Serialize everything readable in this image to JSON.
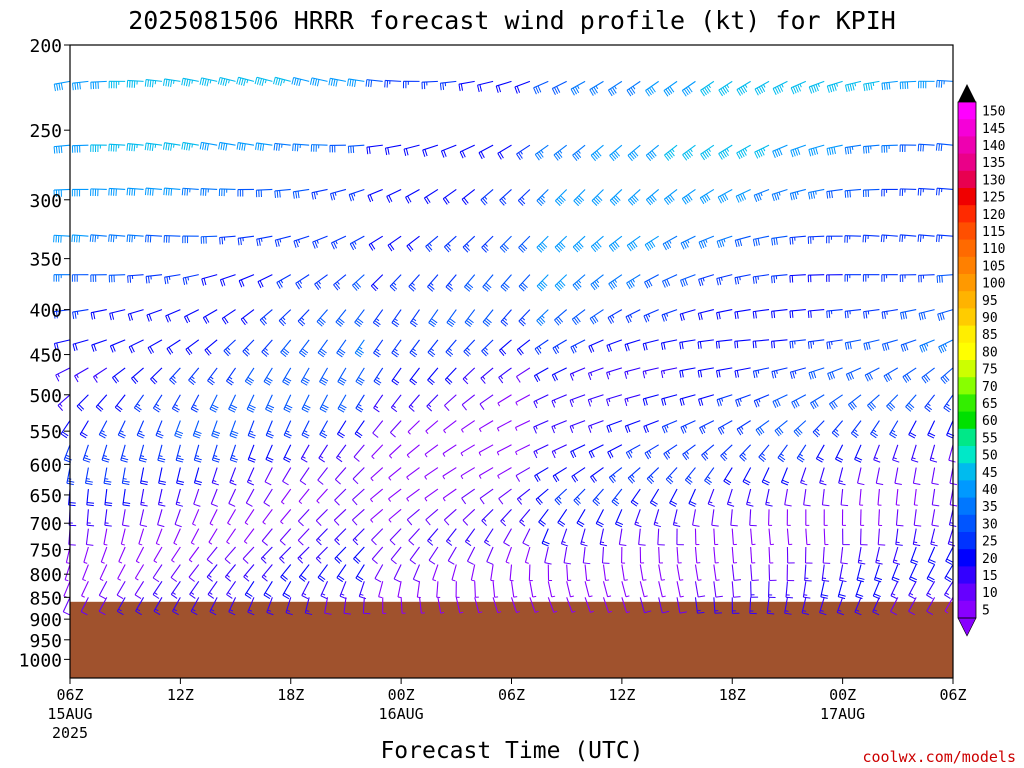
{
  "title": "2025081506 HRRR forecast wind profile (kt) for KPIH",
  "credit": "coolwx.com/models",
  "colors": {
    "ground": "#a0522d",
    "credit": "#cc0000",
    "frame": "#000000"
  },
  "chart_data": {
    "type": "heatmap",
    "title": "2025081506 HRRR forecast wind profile (kt) for KPIH",
    "xlabel": "Forecast Time (UTC)",
    "ylabel": "",
    "x_ticks": [
      {
        "hour": 0,
        "label": "06Z",
        "sub": "15AUG",
        "sub2": "2025"
      },
      {
        "hour": 6,
        "label": "12Z",
        "sub": "",
        "sub2": ""
      },
      {
        "hour": 12,
        "label": "18Z",
        "sub": "",
        "sub2": ""
      },
      {
        "hour": 18,
        "label": "00Z",
        "sub": "16AUG",
        "sub2": ""
      },
      {
        "hour": 24,
        "label": "06Z",
        "sub": "",
        "sub2": ""
      },
      {
        "hour": 30,
        "label": "12Z",
        "sub": "",
        "sub2": ""
      },
      {
        "hour": 36,
        "label": "18Z",
        "sub": "",
        "sub2": ""
      },
      {
        "hour": 42,
        "label": "00Z",
        "sub": "17AUG",
        "sub2": ""
      },
      {
        "hour": 48,
        "label": "06Z",
        "sub": "",
        "sub2": ""
      }
    ],
    "xlim": [
      0,
      48
    ],
    "y_ticks": [
      200,
      250,
      300,
      350,
      400,
      450,
      500,
      550,
      600,
      650,
      700,
      750,
      800,
      850,
      900,
      950,
      1000
    ],
    "ylim": [
      1050,
      200
    ],
    "y_scale": "log",
    "y_units": "hPa",
    "ground_top_hpa": 860,
    "colorbar": {
      "label_values": [
        150,
        145,
        140,
        135,
        130,
        125,
        120,
        115,
        110,
        105,
        100,
        95,
        90,
        85,
        80,
        75,
        70,
        65,
        60,
        55,
        50,
        45,
        40,
        35,
        30,
        25,
        20,
        15,
        10,
        5
      ],
      "colors": [
        "#ff00ff",
        "#f500d8",
        "#ee00b0",
        "#ea0088",
        "#e80050",
        "#f00000",
        "#ff2a00",
        "#ff4f00",
        "#ff6a00",
        "#ff8000",
        "#ff9900",
        "#ffb300",
        "#ffcc00",
        "#ffee00",
        "#ffff00",
        "#ccff00",
        "#88ff00",
        "#33ee00",
        "#00e000",
        "#00e888",
        "#00e8c8",
        "#00bbee",
        "#0099ff",
        "#0077ff",
        "#0055ff",
        "#0033ff",
        "#0000ff",
        "#3300ff",
        "#6600ff",
        "#8800ff"
      ],
      "arrows": "both"
    },
    "wind_levels_hpa": [
      220,
      260,
      292,
      330,
      365,
      400,
      433,
      466,
      500,
      535,
      570,
      605,
      640,
      675,
      710,
      745,
      780,
      815,
      850
    ],
    "wind_barb_interval_hours": 1,
    "speed_kt_by_level": [
      38,
      36,
      34,
      32,
      30,
      28,
      26,
      24,
      22,
      20,
      18,
      16,
      15,
      14,
      13,
      12,
      11,
      10,
      9
    ],
    "direction_deg_by_level": [
      260,
      255,
      250,
      250,
      245,
      240,
      240,
      235,
      230,
      225,
      220,
      215,
      210,
      205,
      200,
      200,
      195,
      190,
      185
    ]
  }
}
